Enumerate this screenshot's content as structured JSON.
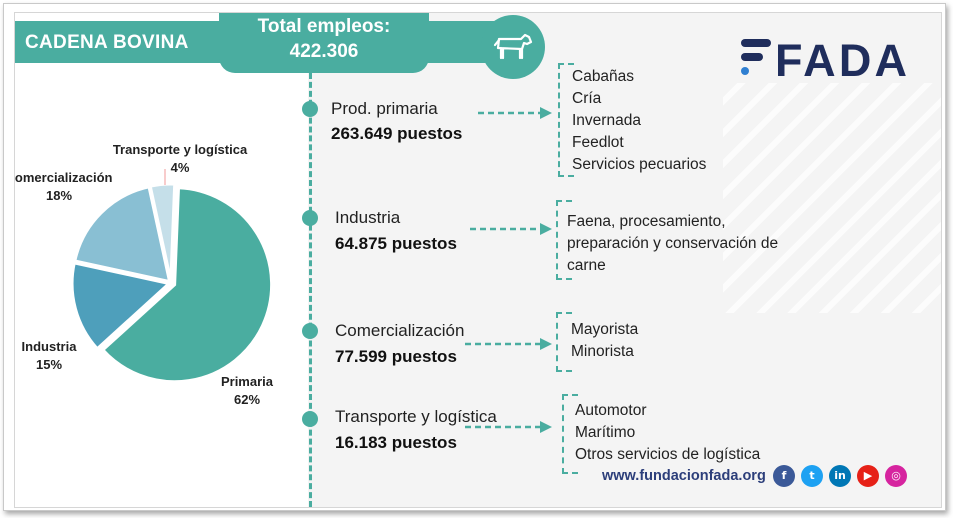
{
  "header": {
    "title": "CADENA BOVINA",
    "total_label": "Total empleos:",
    "total_value": "422.306",
    "icon": "cow-icon"
  },
  "logo_text": "FADA",
  "colors": {
    "teal": "#4aada0",
    "navy": "#1f2d5c",
    "primaria": "#4aada0",
    "industria": "#4e9fbb",
    "comercializacion": "#89bfd3",
    "transporte": "#c5dfe9"
  },
  "chart_data": {
    "type": "pie",
    "categories": [
      "Primaria",
      "Industria",
      "Comercialización",
      "Transporte y logística"
    ],
    "values": [
      62,
      15,
      18,
      4
    ],
    "labels": [
      {
        "name": "Primaria",
        "pct": "62%"
      },
      {
        "name": "Industria",
        "pct": "15%"
      },
      {
        "name": "Comercialización",
        "pct": "18%"
      },
      {
        "name": "Transporte y logística",
        "pct": "4%"
      }
    ]
  },
  "sectors": [
    {
      "name": "Prod. primaria",
      "count": "263.649 puestos",
      "items": [
        "Cabañas",
        "Cría",
        "Invernada",
        "Feedlot",
        "Servicios pecuarios"
      ]
    },
    {
      "name": "Industria",
      "count": "64.875 puestos",
      "items": [
        "Faena, procesamiento,",
        "preparación y conservación de",
        "carne"
      ]
    },
    {
      "name": "Comercialización",
      "count": "77.599 puestos",
      "items": [
        "Mayorista",
        "Minorista"
      ]
    },
    {
      "name": "Transporte y logística",
      "count": "16.183 puestos",
      "items": [
        "Automotor",
        "Marítimo",
        "Otros servicios de logística"
      ]
    }
  ],
  "footer": {
    "url": "www.fundacionfada.org",
    "social": [
      {
        "icon": "facebook-icon",
        "glyph": "f",
        "color": "#3b5998"
      },
      {
        "icon": "twitter-icon",
        "glyph": "t",
        "color": "#1da1f2"
      },
      {
        "icon": "linkedin-icon",
        "glyph": "in",
        "color": "#0077b5"
      },
      {
        "icon": "youtube-icon",
        "glyph": "▶",
        "color": "#e62117"
      },
      {
        "icon": "instagram-icon",
        "glyph": "◎",
        "color": "#d6249f"
      }
    ]
  }
}
